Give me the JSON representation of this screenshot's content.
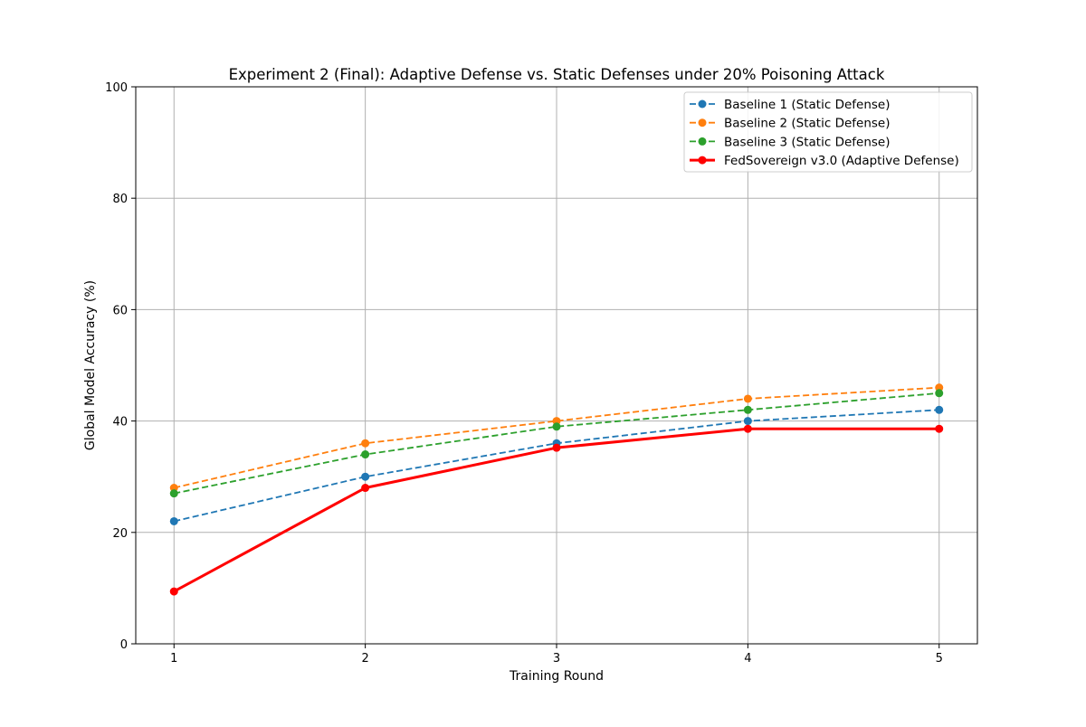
{
  "chart_data": {
    "type": "line",
    "title": "Experiment 2 (Final): Adaptive Defense vs. Static Defenses under 20% Poisoning Attack",
    "xlabel": "Training Round",
    "ylabel": "Global Model Accuracy (%)",
    "x": [
      1,
      2,
      3,
      4,
      5
    ],
    "xlim": [
      0.8,
      5.2
    ],
    "ylim": [
      0,
      100
    ],
    "xticks": [
      "1",
      "2",
      "3",
      "4",
      "5"
    ],
    "yticks": [
      "0",
      "20",
      "40",
      "60",
      "80",
      "100"
    ],
    "grid": true,
    "legend_position": "top-right",
    "series": [
      {
        "name": "Baseline 1 (Static Defense)",
        "values": [
          22,
          30,
          36,
          40,
          42
        ],
        "color": "#1f77b4",
        "style": "dashed"
      },
      {
        "name": "Baseline 2 (Static Defense)",
        "values": [
          28,
          36,
          40,
          44,
          46
        ],
        "color": "#ff7f0e",
        "style": "dashed"
      },
      {
        "name": "Baseline 3 (Static Defense)",
        "values": [
          27,
          34,
          39,
          42,
          45
        ],
        "color": "#2ca02c",
        "style": "dashed"
      },
      {
        "name": "FedSovereign v3.0 (Adaptive Defense)",
        "values": [
          9.4,
          28,
          35.2,
          38.6,
          38.6
        ],
        "color": "#ff0000",
        "style": "solid"
      }
    ]
  }
}
